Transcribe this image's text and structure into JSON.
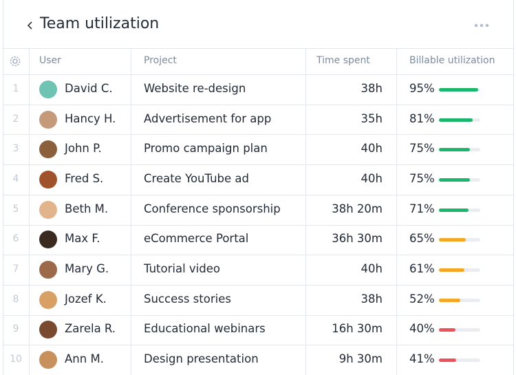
{
  "header": {
    "title": "Team utilization"
  },
  "table": {
    "columns": [
      "User",
      "Project",
      "Time spent",
      "Billable utilization"
    ],
    "rows": [
      {
        "number": 1,
        "user": "David C.",
        "project": "Website re-design",
        "time": "38h",
        "utilization": 95,
        "utilization_label": "95%",
        "color": "#1bb56b"
      },
      {
        "number": 2,
        "user": "Hancy H.",
        "project": "Advertisement for app",
        "time": "35h",
        "utilization": 81,
        "utilization_label": "81%",
        "color": "#1bb56b"
      },
      {
        "number": 3,
        "user": "John P.",
        "project": "Promo campaign plan",
        "time": "40h",
        "utilization": 75,
        "utilization_label": "75%",
        "color": "#1bb56b"
      },
      {
        "number": 4,
        "user": "Fred S.",
        "project": "Create YouTube ad",
        "time": "40h",
        "utilization": 75,
        "utilization_label": "75%",
        "color": "#1bb56b"
      },
      {
        "number": 5,
        "user": "Beth M.",
        "project": "Conference sponsorship",
        "time": "38h 20m",
        "utilization": 71,
        "utilization_label": "71%",
        "color": "#1bb56b"
      },
      {
        "number": 6,
        "user": "Max F.",
        "project": "eCommerce Portal",
        "time": "36h 30m",
        "utilization": 65,
        "utilization_label": "65%",
        "color": "#f5a623"
      },
      {
        "number": 7,
        "user": "Mary G.",
        "project": "Tutorial video",
        "time": "40h",
        "utilization": 61,
        "utilization_label": "61%",
        "color": "#f5a623"
      },
      {
        "number": 8,
        "user": "Jozef K.",
        "project": "Success stories",
        "time": "38h",
        "utilization": 52,
        "utilization_label": "52%",
        "color": "#f5a623"
      },
      {
        "number": 9,
        "user": "Zarela R.",
        "project": "Educational webinars",
        "time": "16h 30m",
        "utilization": 40,
        "utilization_label": "40%",
        "color": "#f0505a"
      },
      {
        "number": 10,
        "user": "Ann M.",
        "project": "Design presentation",
        "time": "9h 30m",
        "utilization": 41,
        "utilization_label": "41%",
        "color": "#f0505a"
      }
    ]
  }
}
